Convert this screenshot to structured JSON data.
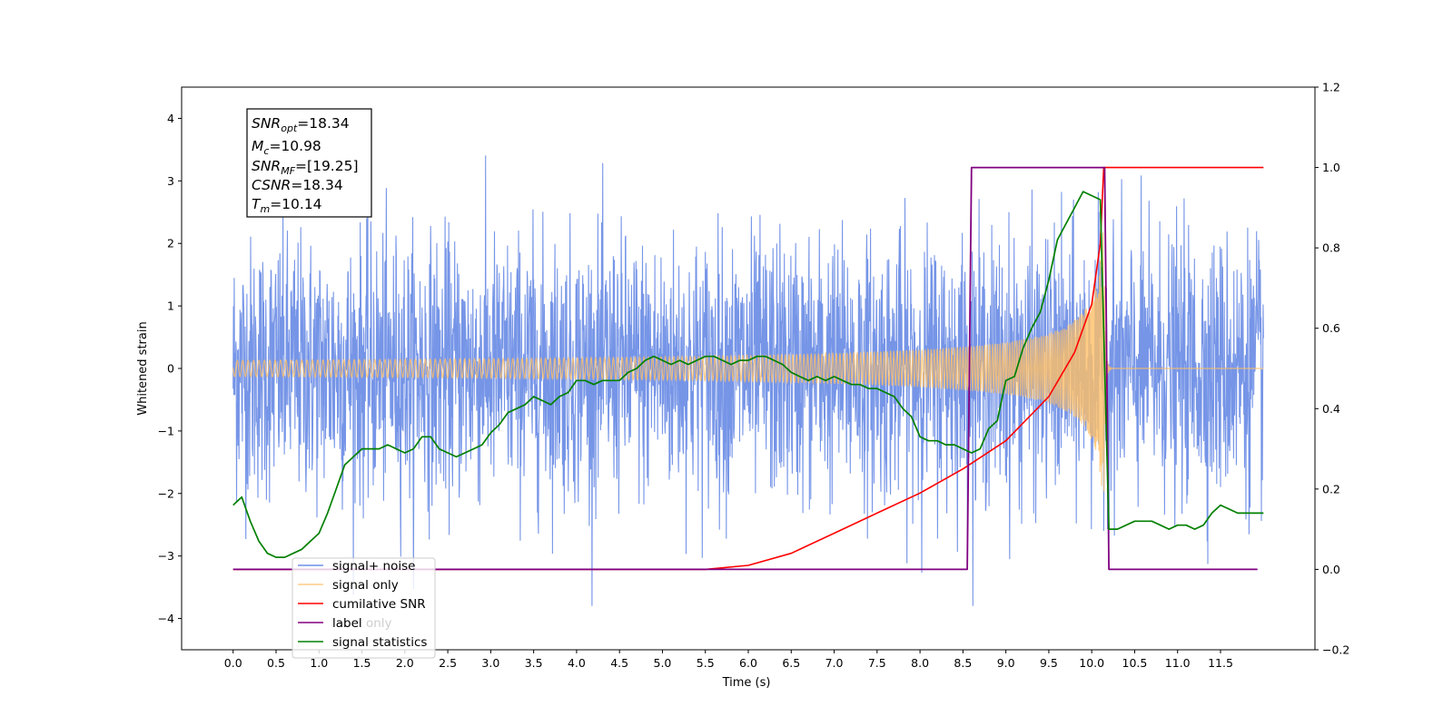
{
  "chart_data": {
    "type": "line",
    "xlabel": "Time (s)",
    "ylabel": "Whitened strain",
    "xlim": [
      -0.6,
      12.6
    ],
    "ylim": [
      -4.5,
      4.5
    ],
    "y2lim": [
      -0.2,
      1.2
    ],
    "x_ticks": [
      "0.0",
      "0.5",
      "1.0",
      "1.5",
      "2.0",
      "2.5",
      "3.0",
      "3.5",
      "4.0",
      "4.5",
      "5.0",
      "5.5",
      "6.0",
      "6.5",
      "7.0",
      "7.5",
      "8.0",
      "8.5",
      "9.0",
      "9.5",
      "10.0",
      "10.5",
      "11.0",
      "11.5"
    ],
    "y_ticks": [
      "−4",
      "−3",
      "−2",
      "−1",
      "0",
      "1",
      "2",
      "3",
      "4"
    ],
    "y2_ticks": [
      "−0.2",
      "0.0",
      "0.2",
      "0.4",
      "0.6",
      "0.8",
      "1.0",
      "1.2"
    ],
    "legend_position": "lower-left",
    "grid": false,
    "annotation": [
      {
        "base": "SNR",
        "sub": "opt",
        "value": "=18.34"
      },
      {
        "base": "M",
        "sub": "c",
        "value": "=10.98"
      },
      {
        "base": "SNR",
        "sub": "MF",
        "value": "=[19.25]"
      },
      {
        "base": "CSNR",
        "sub": "",
        "value": "=18.34"
      },
      {
        "base": "T",
        "sub": "m",
        "value": "=10.14"
      }
    ],
    "series": [
      {
        "name": "signal+ noise",
        "color": "#6f8fe6",
        "axis": "left",
        "description": "whitened strain noise, approx. ±1.3 typical, peaks to ±3.8",
        "x_range": [
          0.0,
          12.0
        ],
        "typical_amplitude": 1.3,
        "peak_amplitude": 3.8
      },
      {
        "name": "signal only",
        "color": "#ffbf66",
        "axis": "left",
        "description": "chirp waveform, amplitude grows toward merger at ~10.14 s",
        "x_range": [
          0.0,
          12.0
        ],
        "merger_time": 10.14,
        "peak_amplitude": 2.4
      },
      {
        "name": "cumilative SNR",
        "color": "#ff0000",
        "axis": "right",
        "x": [
          0.0,
          5.5,
          6.0,
          6.5,
          7.0,
          7.5,
          8.0,
          8.5,
          9.0,
          9.5,
          9.8,
          10.0,
          10.1,
          10.14,
          12.0
        ],
        "y": [
          0.0,
          0.0,
          0.01,
          0.04,
          0.09,
          0.14,
          0.19,
          0.25,
          0.32,
          0.43,
          0.54,
          0.66,
          0.81,
          1.0,
          1.0
        ]
      },
      {
        "name": "label",
        "color": "#800080",
        "axis": "right",
        "x": [
          0.0,
          8.55,
          8.6,
          10.15,
          10.2,
          11.93
        ],
        "y": [
          0.0,
          0.0,
          1.0,
          1.0,
          0.0,
          0.0
        ]
      },
      {
        "name": "label only",
        "color": "#800080",
        "axis": "right",
        "hidden": true,
        "x": [],
        "y": []
      },
      {
        "name": "signal statistics",
        "color": "#008000",
        "axis": "right",
        "x": [
          0.0,
          0.1,
          0.2,
          0.3,
          0.4,
          0.5,
          0.6,
          0.7,
          0.8,
          0.9,
          1.0,
          1.1,
          1.2,
          1.3,
          1.4,
          1.5,
          1.6,
          1.7,
          1.8,
          1.9,
          2.0,
          2.1,
          2.2,
          2.3,
          2.4,
          2.5,
          2.6,
          2.7,
          2.8,
          2.9,
          3.0,
          3.1,
          3.2,
          3.3,
          3.4,
          3.5,
          3.6,
          3.7,
          3.8,
          3.9,
          4.0,
          4.1,
          4.2,
          4.3,
          4.4,
          4.5,
          4.6,
          4.7,
          4.8,
          4.9,
          5.0,
          5.1,
          5.2,
          5.3,
          5.4,
          5.5,
          5.6,
          5.7,
          5.8,
          5.9,
          6.0,
          6.1,
          6.2,
          6.3,
          6.4,
          6.5,
          6.6,
          6.7,
          6.8,
          6.9,
          7.0,
          7.1,
          7.2,
          7.3,
          7.4,
          7.5,
          7.6,
          7.7,
          7.8,
          7.9,
          8.0,
          8.1,
          8.2,
          8.3,
          8.4,
          8.5,
          8.6,
          8.7,
          8.8,
          8.9,
          9.0,
          9.1,
          9.2,
          9.3,
          9.4,
          9.5,
          9.6,
          9.7,
          9.8,
          9.9,
          10.0,
          10.1,
          10.2,
          10.3,
          10.4,
          10.5,
          10.6,
          10.7,
          10.8,
          10.9,
          11.0,
          11.1,
          11.2,
          11.3,
          11.4,
          11.5,
          11.6,
          11.7,
          11.8,
          11.9,
          12.0
        ],
        "y": [
          0.16,
          0.18,
          0.12,
          0.07,
          0.04,
          0.03,
          0.03,
          0.04,
          0.05,
          0.07,
          0.09,
          0.14,
          0.2,
          0.26,
          0.28,
          0.3,
          0.3,
          0.3,
          0.31,
          0.3,
          0.29,
          0.3,
          0.33,
          0.33,
          0.3,
          0.29,
          0.28,
          0.29,
          0.3,
          0.31,
          0.34,
          0.36,
          0.39,
          0.4,
          0.41,
          0.43,
          0.42,
          0.41,
          0.43,
          0.44,
          0.47,
          0.47,
          0.46,
          0.47,
          0.47,
          0.47,
          0.49,
          0.5,
          0.52,
          0.53,
          0.52,
          0.51,
          0.52,
          0.51,
          0.52,
          0.53,
          0.53,
          0.52,
          0.51,
          0.52,
          0.52,
          0.53,
          0.53,
          0.52,
          0.51,
          0.49,
          0.48,
          0.47,
          0.48,
          0.47,
          0.48,
          0.47,
          0.46,
          0.46,
          0.45,
          0.45,
          0.44,
          0.43,
          0.4,
          0.38,
          0.33,
          0.32,
          0.32,
          0.31,
          0.31,
          0.3,
          0.29,
          0.3,
          0.35,
          0.37,
          0.47,
          0.48,
          0.55,
          0.6,
          0.64,
          0.72,
          0.82,
          0.86,
          0.9,
          0.94,
          0.93,
          0.92,
          0.1,
          0.1,
          0.11,
          0.12,
          0.12,
          0.12,
          0.11,
          0.1,
          0.11,
          0.11,
          0.1,
          0.11,
          0.14,
          0.16,
          0.15,
          0.14,
          0.14,
          0.14,
          0.14
        ]
      }
    ]
  }
}
